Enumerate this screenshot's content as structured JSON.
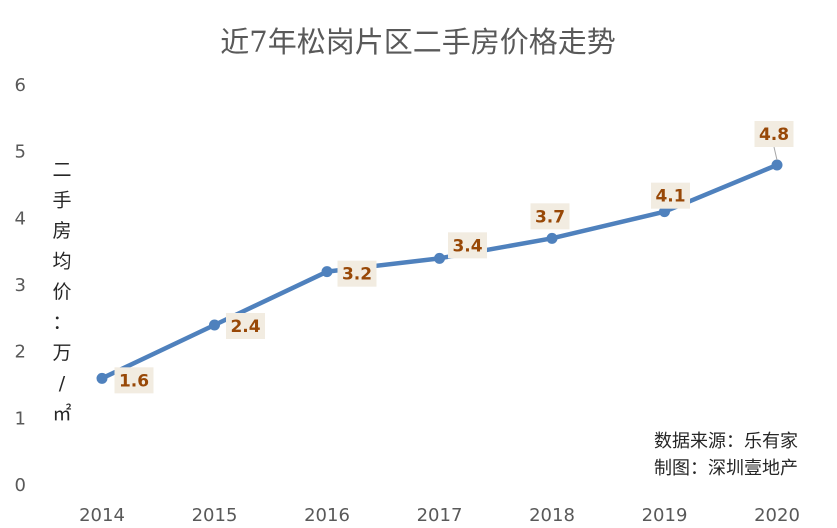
{
  "chart_data": {
    "type": "line",
    "title": "近7年松岗片区二手房价格走势",
    "ylabel": "二手房均价：万/㎡",
    "ylim": [
      0,
      6
    ],
    "yticks": [
      0,
      1,
      2,
      3,
      4,
      5,
      6
    ],
    "categories": [
      "2014",
      "2015",
      "2016",
      "2017",
      "2018",
      "2019",
      "2020"
    ],
    "series": [
      {
        "values": [
          1.6,
          2.4,
          3.2,
          3.4,
          3.7,
          4.1,
          4.8
        ],
        "color": "#4f81bd"
      }
    ],
    "data_labels": [
      "1.6",
      "2.4",
      "3.2",
      "3.4",
      "3.7",
      "4.1",
      "4.8"
    ],
    "grid": false,
    "legend": "none"
  },
  "annotation": {
    "source": "数据来源：乐有家",
    "maker": "制图：深圳壹地产"
  },
  "colors": {
    "line": "#4f81bd",
    "label_bg": "#f2ece1",
    "label_text": "#984807",
    "axis_text": "#595959"
  }
}
